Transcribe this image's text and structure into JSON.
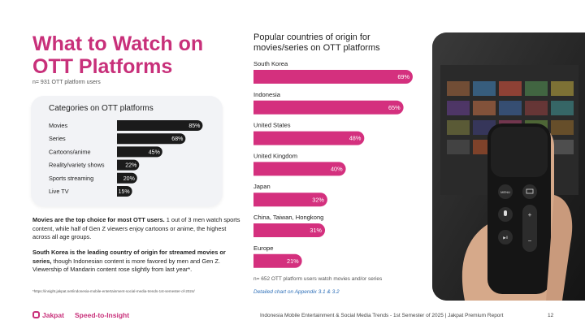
{
  "header": {
    "title": "What to Watch on OTT Platforms",
    "sample_note": "n= 931 OTT platform users"
  },
  "categories_card": {
    "title": "Categories on OTT platforms"
  },
  "chart_data": [
    {
      "type": "bar",
      "orientation": "horizontal",
      "title": "Categories on OTT platforms",
      "categories": [
        "Movies",
        "Series",
        "Cartoons/anime",
        "Reality/variety shows",
        "Sports streaming",
        "Live TV"
      ],
      "values": [
        85,
        68,
        45,
        22,
        20,
        15
      ],
      "value_labels": [
        "85%",
        "68%",
        "45%",
        "22%",
        "20%",
        "15%"
      ],
      "unit": "%",
      "bar_color": "#1b1b1b"
    },
    {
      "type": "bar",
      "orientation": "horizontal",
      "title": "Popular countries of origin for movies/series on OTT platforms",
      "categories": [
        "South Korea",
        "Indonesia",
        "United States",
        "United Kingdom",
        "Japan",
        "China, Taiwan, Hongkong",
        "Europe"
      ],
      "values": [
        69,
        65,
        48,
        40,
        32,
        31,
        21
      ],
      "value_labels": [
        "69%",
        "65%",
        "48%",
        "40%",
        "32%",
        "31%",
        "21%"
      ],
      "unit": "%",
      "bar_color": "#d4307e"
    }
  ],
  "right_chart": {
    "title": "Popular countries of origin for movies/series on OTT platforms",
    "sample_note": "n= 652 OTT platform users watch movies and/or series",
    "link_note": "Detailed chart on Appendix 3.1 & 3.2"
  },
  "body_text": {
    "p1_bold": "Movies are the top choice for most OTT users.",
    "p1_rest": " 1 out of 3 men watch sports content, while half of Gen Z viewers enjoy cartoons or anime, the highest across all age groups.",
    "p2_bold": "South Korea is the leading country of origin for streamed movies or series,",
    "p2_rest": " though Indonesian content is more favored by men and Gen Z. Viewership of Mandarin content rose slightly from last year*.",
    "footnote": "*https://insight.jakpat.net/indonesia-mobile-entertainment-social-media-trends-1st-semester-of-2024/"
  },
  "footer": {
    "brand": "Jakpat",
    "tagline": "Speed-to-Insight",
    "report": "Indonesia Mobile Entertainment & Social Media Trends - 1st Semester of 2025 | Jakpat Premium Report",
    "page": "12"
  },
  "colors": {
    "accent": "#c8307a",
    "bar_pink": "#d4307e",
    "bar_dark": "#1b1b1b",
    "link": "#2d6fb8"
  }
}
